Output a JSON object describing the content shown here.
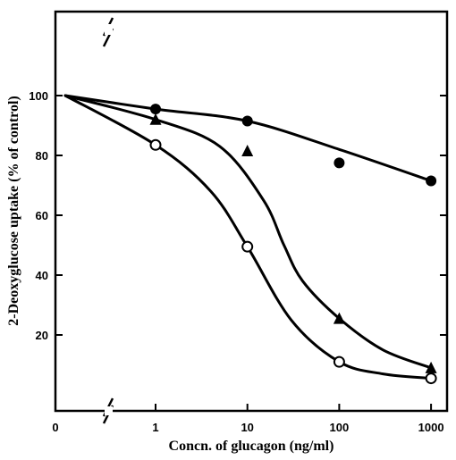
{
  "chart_data": {
    "type": "scatter",
    "xlabel": "Concn. of glucagon (ng/ml)",
    "ylabel": "2-Deoxyglucose uptake  (% of control)",
    "x_scale": "log with broken axis at zero",
    "x_ticks": [
      "0",
      "1",
      "10",
      "100",
      "1000"
    ],
    "y_ticks": [
      "20",
      "40",
      "60",
      "80",
      "100"
    ],
    "ylim": [
      5,
      100
    ],
    "grid": false,
    "series": [
      {
        "marker": "filled-circle",
        "points": [
          {
            "x": 0,
            "y": 100
          },
          {
            "x": 1,
            "y": 95.5
          },
          {
            "x": 10,
            "y": 91.5
          },
          {
            "x": 100,
            "y": 77.5
          },
          {
            "x": 1000,
            "y": 71.5
          }
        ],
        "curve": [
          {
            "x": 0,
            "y": 100
          },
          {
            "x": 1,
            "y": 95.5
          },
          {
            "x": 10,
            "y": 91.5
          },
          {
            "x": 100,
            "y": 82
          },
          {
            "x": 1000,
            "y": 71.5
          }
        ]
      },
      {
        "marker": "filled-triangle",
        "points": [
          {
            "x": 0,
            "y": 100
          },
          {
            "x": 1,
            "y": 92
          },
          {
            "x": 10,
            "y": 81.5
          },
          {
            "x": 100,
            "y": 25.5
          },
          {
            "x": 1000,
            "y": 9
          }
        ],
        "curve": [
          {
            "x": 0,
            "y": 100
          },
          {
            "x": 1,
            "y": 92
          },
          {
            "x": 5,
            "y": 83
          },
          {
            "x": 15,
            "y": 65
          },
          {
            "x": 25,
            "y": 50
          },
          {
            "x": 40,
            "y": 38
          },
          {
            "x": 100,
            "y": 25.5
          },
          {
            "x": 300,
            "y": 15
          },
          {
            "x": 1000,
            "y": 9
          }
        ]
      },
      {
        "marker": "open-circle",
        "points": [
          {
            "x": 0,
            "y": 100
          },
          {
            "x": 1,
            "y": 83.5
          },
          {
            "x": 10,
            "y": 49.5
          },
          {
            "x": 100,
            "y": 11
          },
          {
            "x": 1000,
            "y": 5.5
          }
        ],
        "curve": [
          {
            "x": 0,
            "y": 100
          },
          {
            "x": 1,
            "y": 83.5
          },
          {
            "x": 4,
            "y": 68
          },
          {
            "x": 10,
            "y": 49.5
          },
          {
            "x": 30,
            "y": 25
          },
          {
            "x": 100,
            "y": 11
          },
          {
            "x": 300,
            "y": 7
          },
          {
            "x": 1000,
            "y": 5.5
          }
        ]
      }
    ]
  }
}
